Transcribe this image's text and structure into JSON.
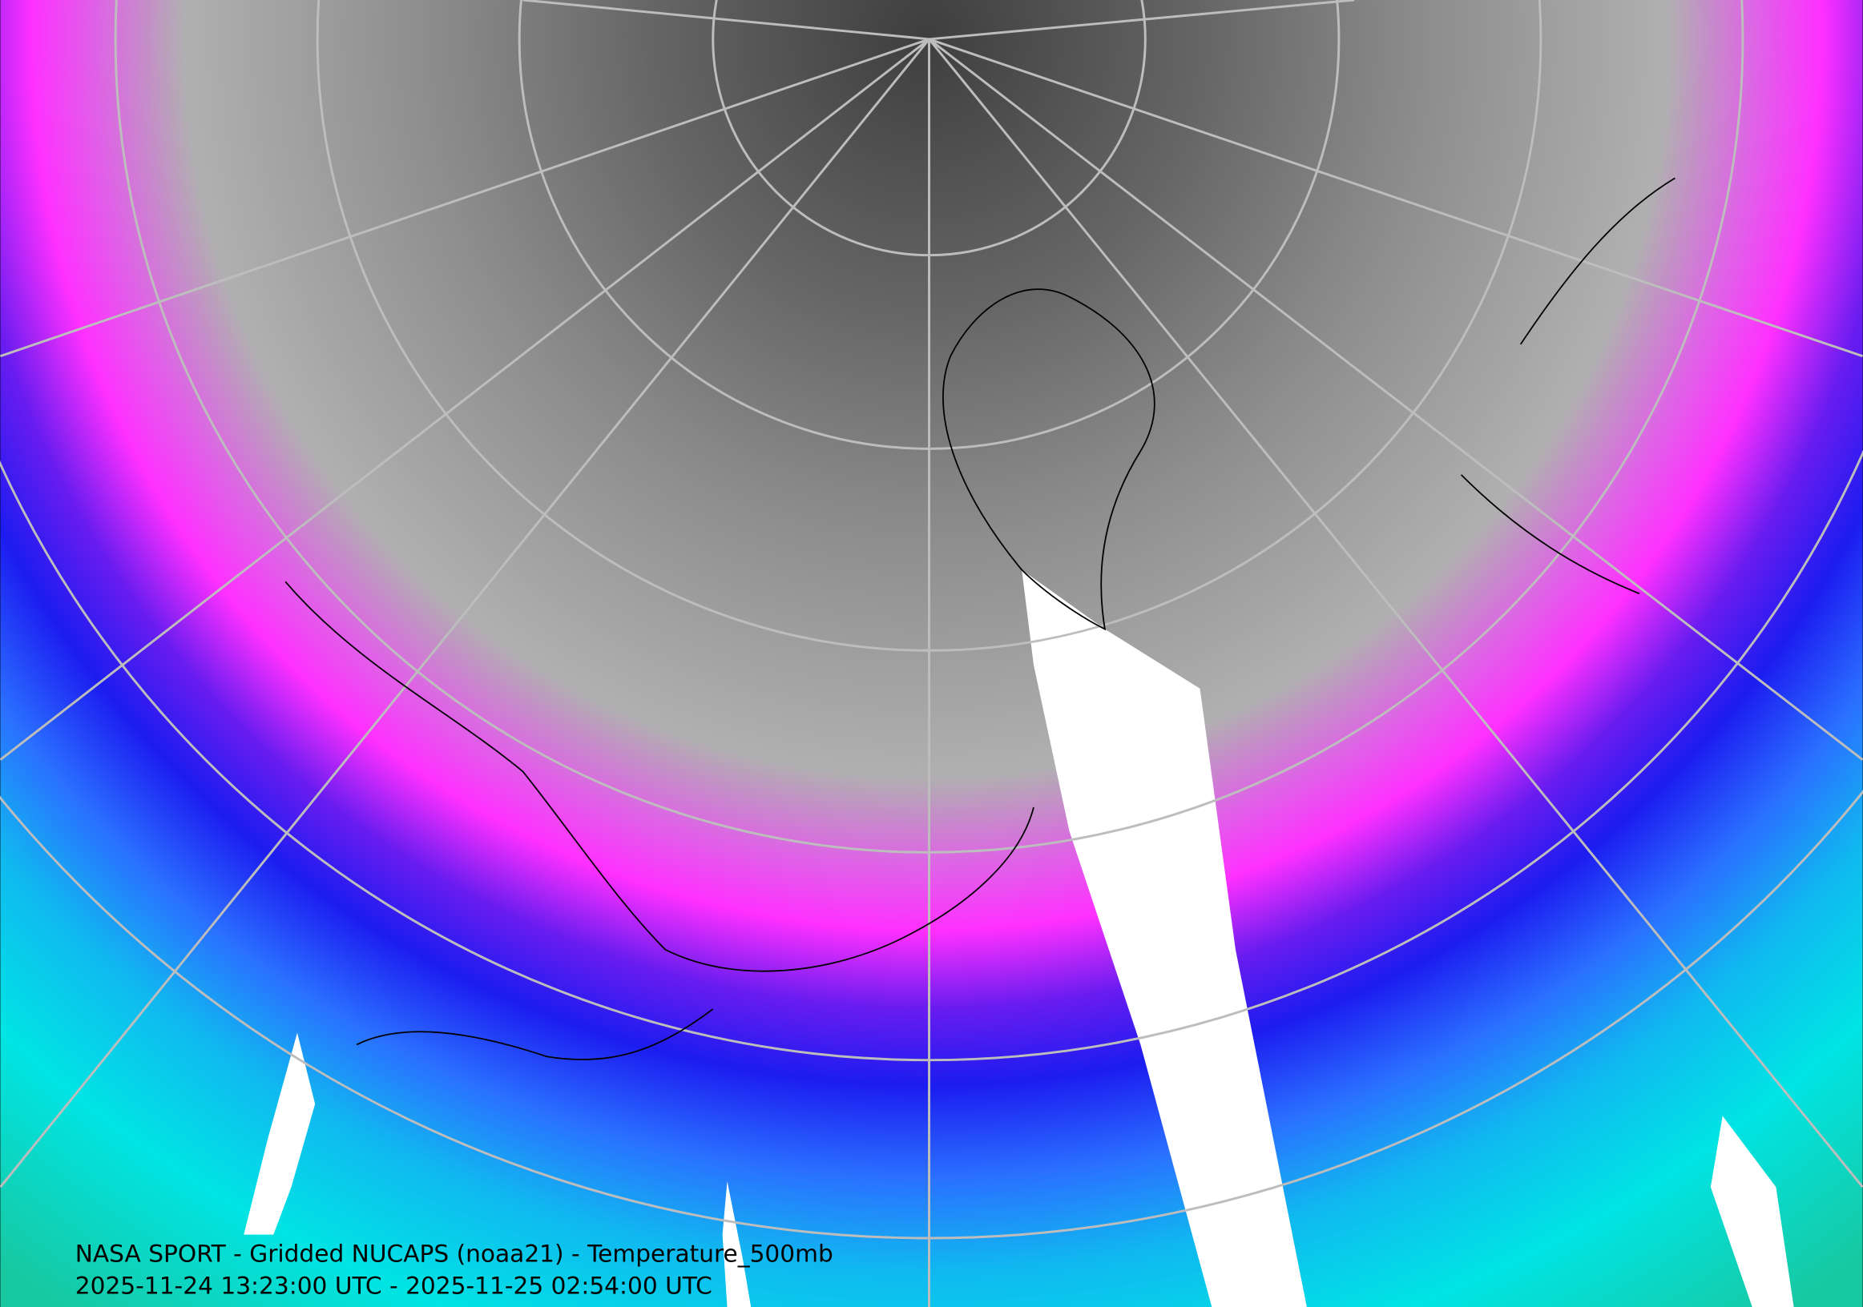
{
  "caption": {
    "line1": "NASA SPORT - Gridded NUCAPS (noaa21) - Temperature_500mb",
    "line2": "2025-11-24 13:23:00 UTC - 2025-11-25 02:54:00 UTC"
  }
}
